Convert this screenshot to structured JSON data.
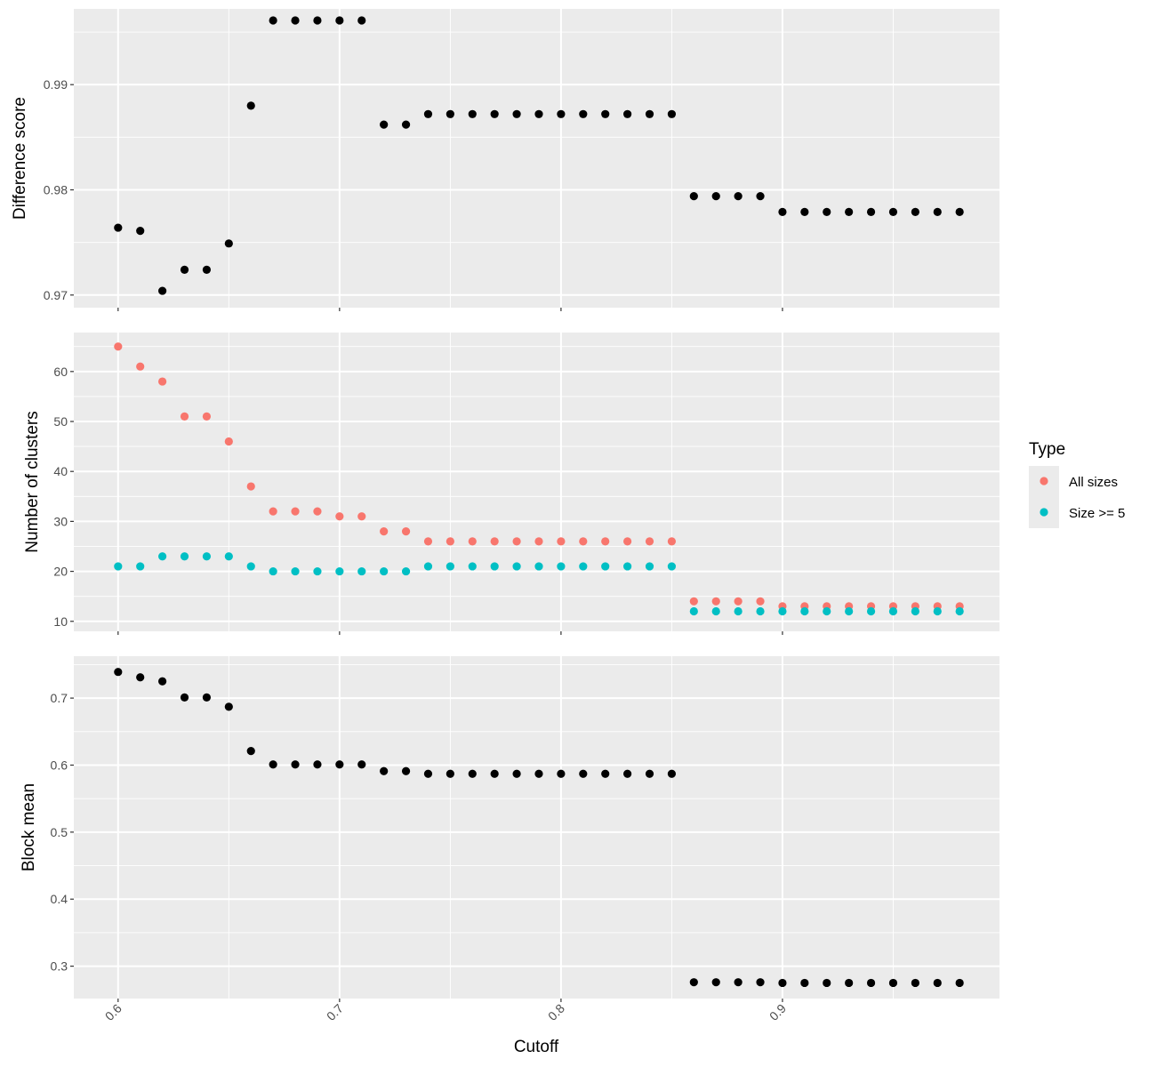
{
  "chart_data": {
    "type": "scatter",
    "xlabel": "Cutoff",
    "xlim": [
      0.58,
      0.998
    ],
    "x_ticks": [
      0.6,
      0.7,
      0.8,
      0.9
    ],
    "x_tick_labels": [
      "0.6",
      "0.7",
      "0.8",
      "0.9"
    ],
    "x": [
      0.6,
      0.61,
      0.62,
      0.63,
      0.64,
      0.65,
      0.66,
      0.67,
      0.68,
      0.69,
      0.7,
      0.71,
      0.72,
      0.73,
      0.74,
      0.75,
      0.76,
      0.77,
      0.78,
      0.79,
      0.8,
      0.81,
      0.82,
      0.83,
      0.84,
      0.85,
      0.86,
      0.87,
      0.88,
      0.89,
      0.9,
      0.91,
      0.92,
      0.93,
      0.94,
      0.95,
      0.96,
      0.97,
      0.98
    ],
    "grid": true,
    "background": "#ebebeb",
    "panels": [
      {
        "ylabel": "Difference score",
        "ylim": [
          0.9688,
          0.9972
        ],
        "y_ticks": [
          0.97,
          0.98,
          0.99
        ],
        "y_tick_labels": [
          "0.97",
          "0.98",
          "0.99"
        ],
        "series": [
          {
            "color": "#000000",
            "values": [
              0.9764,
              0.9761,
              0.9704,
              0.9724,
              0.9724,
              0.9749,
              0.988,
              0.9961,
              0.9961,
              0.9961,
              0.9961,
              0.9961,
              0.9862,
              0.9862,
              0.9872,
              0.9872,
              0.9872,
              0.9872,
              0.9872,
              0.9872,
              0.9872,
              0.9872,
              0.9872,
              0.9872,
              0.9872,
              0.9872,
              0.9794,
              0.9794,
              0.9794,
              0.9794,
              0.9779,
              0.9779,
              0.9779,
              0.9779,
              0.9779,
              0.9779,
              0.9779,
              0.9779,
              0.9779
            ]
          }
        ]
      },
      {
        "ylabel": "Number of clusters",
        "ylim": [
          8,
          67.8
        ],
        "y_ticks": [
          10,
          20,
          30,
          40,
          50,
          60
        ],
        "y_tick_labels": [
          "10",
          "20",
          "30",
          "40",
          "50",
          "60"
        ],
        "series": [
          {
            "name": "All sizes",
            "color": "#f8766d",
            "values": [
              65,
              61,
              58,
              51,
              51,
              46,
              37,
              32,
              32,
              32,
              31,
              31,
              28,
              28,
              26,
              26,
              26,
              26,
              26,
              26,
              26,
              26,
              26,
              26,
              26,
              26,
              14,
              14,
              14,
              14,
              13,
              13,
              13,
              13,
              13,
              13,
              13,
              13,
              13
            ]
          },
          {
            "name": "Size >= 5",
            "color": "#00bfc4",
            "values": [
              21,
              21,
              23,
              23,
              23,
              23,
              21,
              20,
              20,
              20,
              20,
              20,
              20,
              20,
              21,
              21,
              21,
              21,
              21,
              21,
              21,
              21,
              21,
              21,
              21,
              21,
              12,
              12,
              12,
              12,
              12,
              12,
              12,
              12,
              12,
              12,
              12,
              12,
              12
            ]
          }
        ]
      },
      {
        "ylabel": "Block mean",
        "ylim": [
          0.2517,
          0.7625
        ],
        "y_ticks": [
          0.3,
          0.4,
          0.5,
          0.6,
          0.7
        ],
        "y_tick_labels": [
          "0.3",
          "0.4",
          "0.5",
          "0.6",
          "0.7"
        ],
        "series": [
          {
            "color": "#000000",
            "values": [
              0.739,
              0.731,
              0.725,
              0.701,
              0.701,
              0.687,
              0.621,
              0.601,
              0.601,
              0.601,
              0.601,
              0.601,
              0.591,
              0.591,
              0.587,
              0.587,
              0.587,
              0.587,
              0.587,
              0.587,
              0.587,
              0.587,
              0.587,
              0.587,
              0.587,
              0.587,
              0.276,
              0.276,
              0.276,
              0.276,
              0.275,
              0.275,
              0.275,
              0.275,
              0.275,
              0.275,
              0.275,
              0.275,
              0.275
            ]
          }
        ]
      }
    ],
    "legend": {
      "title": "Type",
      "position": "right",
      "entries": [
        {
          "label": "All sizes",
          "color": "#f8766d"
        },
        {
          "label": "Size >= 5",
          "color": "#00bfc4"
        }
      ]
    }
  }
}
